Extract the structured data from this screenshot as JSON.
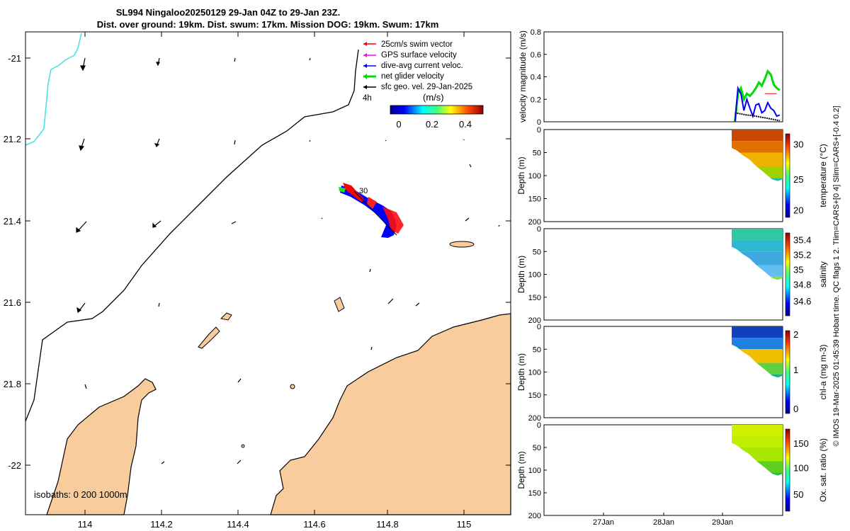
{
  "title": {
    "line1": "SL994 Ningaloo20250129 29-Jan 04Z to 29-Jan 23Z.",
    "line2": "Dist. over ground: 19km. Dist. swum: 17km. Mission DOG: 19km. Swum: 17km"
  },
  "map": {
    "xticks": [
      "114",
      "114.2",
      "114.4",
      "114.6",
      "114.8",
      "115"
    ],
    "yticks": [
      "-21",
      "21.2",
      "21.4",
      "21.6",
      "21.8",
      "-22"
    ],
    "isobaths": "isobaths: 0   200  1000m",
    "time_marker": "4h",
    "track_label": "30",
    "legend": {
      "items": [
        {
          "label": "25cm/s swim vector",
          "color": "#ff0000"
        },
        {
          "label": "GPS surface velocity",
          "color": "#ff00ff"
        },
        {
          "label": "dive-avg current veloc.",
          "color": "#0000ff"
        },
        {
          "label": "net glider velocity",
          "color": "#00dd00"
        },
        {
          "label": "sfc geo. vel. 29-Jan-2025",
          "color": "#000000"
        }
      ]
    },
    "colorbar": {
      "label": "(m/s)",
      "ticks": [
        "0",
        "0.2",
        "0.4"
      ]
    },
    "land_color": "#f8cc9c"
  },
  "chart_data": [
    {
      "type": "line",
      "title": "",
      "ylabel": "velocity magnitude (m/s)",
      "ylim": [
        0,
        0.8
      ],
      "yticks": [
        "0",
        "0.2",
        "0.4",
        "0.6",
        "0.8"
      ],
      "x": [
        29.2,
        29.25,
        29.3,
        29.35,
        29.4,
        29.45,
        29.5,
        29.55,
        29.6,
        29.65,
        29.7,
        29.75,
        29.8,
        29.85,
        29.9,
        29.95
      ],
      "series": [
        {
          "name": "net glider velocity",
          "color": "#00dd00",
          "values": [
            0.0,
            0.25,
            0.3,
            0.2,
            0.25,
            0.23,
            0.26,
            0.3,
            0.35,
            0.32,
            0.38,
            0.45,
            0.42,
            0.33,
            0.3,
            0.28
          ]
        },
        {
          "name": "dive-avg current veloc.",
          "color": "#0000ff",
          "values": [
            0.0,
            0.3,
            0.25,
            0.1,
            0.2,
            0.12,
            0.05,
            0.15,
            0.16,
            0.08,
            0.1,
            0.17,
            0.12,
            0.1,
            0.05,
            0.06
          ]
        },
        {
          "name": "sfc geo. vel.",
          "color": "#000000",
          "values": [
            0.08,
            0.075,
            0.07,
            0.065,
            0.06,
            0.058,
            0.055,
            0.05,
            0.045,
            0.04,
            0.035,
            0.03,
            0.025,
            0.02,
            0.015,
            0.01
          ]
        },
        {
          "name": "swim",
          "color": "#ff0000",
          "values": [
            null,
            null,
            null,
            null,
            null,
            null,
            null,
            null,
            null,
            null,
            0.25,
            0.25,
            0.25,
            0.25,
            0.25,
            null
          ]
        }
      ]
    },
    {
      "type": "heatmap",
      "ylabel": "Depth (m)",
      "ylim": [
        200,
        0
      ],
      "yticks": [
        "0",
        "50",
        "100",
        "150",
        "200"
      ],
      "clabel": "temperature (°C)",
      "cticks": [
        "20",
        "25",
        "30"
      ],
      "colors": [
        "#c84800",
        "#e07000",
        "#f0b000",
        "#a0d000",
        "#20c0a0"
      ]
    },
    {
      "type": "heatmap",
      "ylabel": "Depth (m)",
      "ylim": [
        200,
        0
      ],
      "yticks": [
        "0",
        "50",
        "100",
        "150",
        "200"
      ],
      "clabel": "salinity",
      "cticks": [
        "35.4",
        "35.2",
        "35",
        "34.8",
        "34.6"
      ],
      "colors": [
        "#30c8a0",
        "#30b8d0",
        "#40a8e0",
        "#60c0f0",
        "#80e040"
      ]
    },
    {
      "type": "heatmap",
      "ylabel": "Depth (m)",
      "ylim": [
        200,
        0
      ],
      "yticks": [
        "0",
        "50",
        "100",
        "150",
        "200"
      ],
      "clabel": "chl-a (mg m-3)",
      "cticks": [
        "2",
        "1",
        "0"
      ],
      "colors": [
        "#1040c0",
        "#2080e0",
        "#f0c000",
        "#60d040",
        "#10b0a0"
      ]
    },
    {
      "type": "heatmap",
      "ylabel": "Depth (m)",
      "ylim": [
        200,
        0
      ],
      "yticks": [
        "0",
        "50",
        "100",
        "150",
        "200"
      ],
      "clabel": "Ox. sat. ratio (%)",
      "cticks": [
        "150",
        "100",
        "50"
      ],
      "colors": [
        "#d0f000",
        "#c0ee00",
        "#a8e800",
        "#60d020",
        "#20c040"
      ]
    }
  ],
  "time_axis": {
    "ticks": [
      "27Jan",
      "28Jan",
      "29Jan"
    ]
  },
  "side_note": "© IMOS 19-Mar-2025 01:45:39 Hobart time. QC flags 1  2. Tlim=CARS+[0 4] Slim=CARS+[-0.4 0.2]"
}
